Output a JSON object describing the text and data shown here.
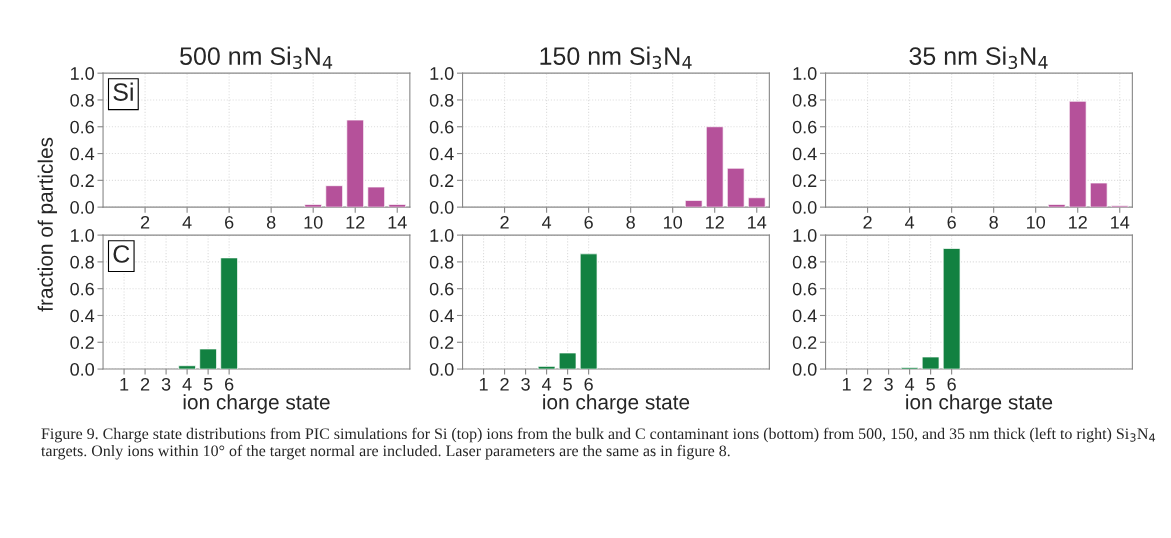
{
  "chart_data": [
    {
      "type": "bar",
      "title": "500 nm Si$_{3}$N$_{4}$",
      "annotations": [
        "Si"
      ],
      "x": [
        10,
        11,
        12,
        13,
        14
      ],
      "values": [
        0.02,
        0.16,
        0.65,
        0.15,
        0.02
      ],
      "color": "#b5519a",
      "xlim": [
        0,
        14.6
      ],
      "xticks": [
        2,
        4,
        6,
        8,
        10,
        12,
        14
      ],
      "ylim": [
        0,
        1
      ],
      "yticks": [
        {
          "value": 0,
          "label": "0.0"
        },
        {
          "value": 0.2,
          "label": "0.2"
        },
        {
          "value": 0.4,
          "label": "0.4"
        },
        {
          "value": 0.6,
          "label": "0.6"
        },
        {
          "value": 0.8,
          "label": "0.8"
        },
        {
          "value": 1,
          "label": "1.0"
        }
      ],
      "grid": true
    },
    {
      "type": "bar",
      "title": "150 nm Si$_{3}$N$_{4}$",
      "x": [
        11,
        12,
        13,
        14
      ],
      "values": [
        0.05,
        0.6,
        0.29,
        0.07
      ],
      "color": "#b5519a",
      "xlim": [
        0,
        14.6
      ],
      "xticks": [
        2,
        4,
        6,
        8,
        10,
        12,
        14
      ],
      "ylim": [
        0,
        1
      ],
      "yticks": [
        {
          "value": 0,
          "label": "0.0"
        },
        {
          "value": 0.2,
          "label": "0.2"
        },
        {
          "value": 0.4,
          "label": "0.4"
        },
        {
          "value": 0.6,
          "label": "0.6"
        },
        {
          "value": 0.8,
          "label": "0.8"
        },
        {
          "value": 1,
          "label": "1.0"
        }
      ],
      "grid": true
    },
    {
      "type": "bar",
      "title": "35 nm Si$_{3}$N$_{4}$",
      "x": [
        11,
        12,
        13,
        14
      ],
      "values": [
        0.02,
        0.79,
        0.18,
        0.01
      ],
      "color": "#b5519a",
      "xlim": [
        0,
        14.6
      ],
      "xticks": [
        2,
        4,
        6,
        8,
        10,
        12,
        14
      ],
      "ylim": [
        0,
        1
      ],
      "yticks": [
        {
          "value": 0,
          "label": "0.0"
        },
        {
          "value": 0.2,
          "label": "0.2"
        },
        {
          "value": 0.4,
          "label": "0.4"
        },
        {
          "value": 0.6,
          "label": "0.6"
        },
        {
          "value": 0.8,
          "label": "0.8"
        },
        {
          "value": 1,
          "label": "1.0"
        }
      ],
      "grid": true
    },
    {
      "type": "bar",
      "xlabel": "ion charge state",
      "ylabel": "fraction of particles",
      "annotations": [
        "C",
        "Figure 9. Charge state distributions from PIC simulations for Si (top) ions from the bulk and C contaminant ions (bottom) from 500, 150, and 35 nm thick (left to right) Si$_{3}$N$_{4}$ targets. Only ions within 10° of the target normal are included. Laser parameters are the same as in figure 8."
      ],
      "x": [
        4,
        5,
        6
      ],
      "values": [
        0.025,
        0.15,
        0.83
      ],
      "color": "#128141",
      "xlim": [
        0,
        14.6
      ],
      "xticks": [
        1,
        2,
        3,
        4,
        5,
        6
      ],
      "ylim": [
        0,
        1
      ],
      "yticks": [
        {
          "value": 0,
          "label": "0.0"
        },
        {
          "value": 0.2,
          "label": "0.2"
        },
        {
          "value": 0.4,
          "label": "0.4"
        },
        {
          "value": 0.6,
          "label": "0.6"
        },
        {
          "value": 0.8,
          "label": "0.8"
        },
        {
          "value": 1,
          "label": "1.0"
        }
      ],
      "grid": true
    },
    {
      "type": "bar",
      "xlabel": "ion charge state",
      "x": [
        4,
        5,
        6
      ],
      "values": [
        0.02,
        0.12,
        0.86
      ],
      "color": "#128141",
      "xlim": [
        0,
        14.6
      ],
      "xticks": [
        1,
        2,
        3,
        4,
        5,
        6
      ],
      "ylim": [
        0,
        1
      ],
      "yticks": [
        {
          "value": 0,
          "label": "0.0"
        },
        {
          "value": 0.2,
          "label": "0.2"
        },
        {
          "value": 0.4,
          "label": "0.4"
        },
        {
          "value": 0.6,
          "label": "0.6"
        },
        {
          "value": 0.8,
          "label": "0.8"
        },
        {
          "value": 1,
          "label": "1.0"
        }
      ],
      "grid": true
    },
    {
      "type": "bar",
      "xlabel": "ion charge state",
      "x": [
        4,
        5,
        6
      ],
      "values": [
        0.012,
        0.09,
        0.9
      ],
      "color": "#128141",
      "xlim": [
        0,
        14.6
      ],
      "xticks": [
        1,
        2,
        3,
        4,
        5,
        6
      ],
      "ylim": [
        0,
        1
      ],
      "yticks": [
        {
          "value": 0,
          "label": "0.0"
        },
        {
          "value": 0.2,
          "label": "0.2"
        },
        {
          "value": 0.4,
          "label": "0.4"
        },
        {
          "value": 0.6,
          "label": "0.6"
        },
        {
          "value": 0.8,
          "label": "0.8"
        },
        {
          "value": 1,
          "label": "1.0"
        }
      ],
      "grid": true
    }
  ]
}
